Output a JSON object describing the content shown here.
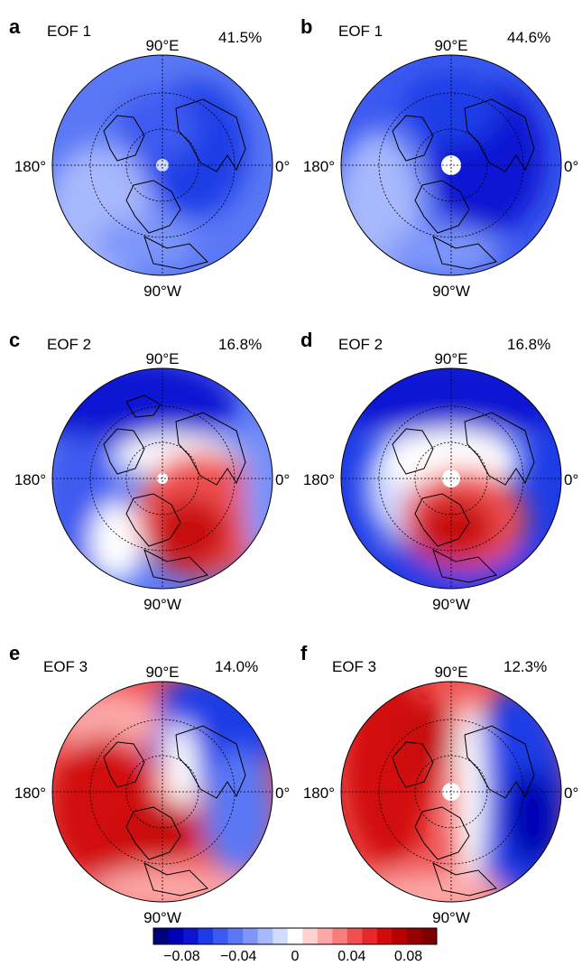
{
  "panels": [
    {
      "letter": "a",
      "eof": "EOF 1",
      "pct": "41.5%",
      "lon_top": "90°E",
      "lon_left": "180°",
      "lon_right": "0°",
      "lon_bottom": "90°W"
    },
    {
      "letter": "b",
      "eof": "EOF 1",
      "pct": "44.6%",
      "lon_top": "90°E",
      "lon_left": "180°",
      "lon_right": "0°",
      "lon_bottom": "90°W"
    },
    {
      "letter": "c",
      "eof": "EOF 2",
      "pct": "16.8%",
      "lon_top": "90°E",
      "lon_left": "180°",
      "lon_right": "0°",
      "lon_bottom": "90°W"
    },
    {
      "letter": "d",
      "eof": "EOF 2",
      "pct": "16.8%",
      "lon_top": "90°E",
      "lon_left": "180°",
      "lon_right": "0°",
      "lon_bottom": "90°W"
    },
    {
      "letter": "e",
      "eof": "EOF 3",
      "pct": "14.0%",
      "lon_top": "90°E",
      "lon_left": "180°",
      "lon_right": "0°",
      "lon_bottom": "90°W"
    },
    {
      "letter": "f",
      "eof": "EOF 3",
      "pct": "12.3%",
      "lon_top": "90°E",
      "lon_left": "180°",
      "lon_right": "0°",
      "lon_bottom": "90°W"
    }
  ],
  "colorbar": {
    "range": [
      -0.1,
      0.1
    ],
    "ticks": [
      "−0.08",
      "−0.04",
      "0",
      "0.04",
      "0.08"
    ],
    "colors": [
      "#00007f",
      "#0000b4",
      "#0a14d2",
      "#1e3ce6",
      "#3c5af0",
      "#5a78f5",
      "#7e96fa",
      "#a8b8fc",
      "#d2daff",
      "#ffffff",
      "#ffd2d2",
      "#fca8a8",
      "#f87e7e",
      "#f05050",
      "#e62828",
      "#d20a0a",
      "#b40000",
      "#960000",
      "#7f0000"
    ]
  },
  "colors": {
    "neg_strong": "#1528c8",
    "neg_mid": "#3c5af0",
    "neg_light": "#a8b8fc",
    "pos_strong": "#c80a0a",
    "pos_mid": "#f05050",
    "pos_light": "#fca8a8"
  }
}
